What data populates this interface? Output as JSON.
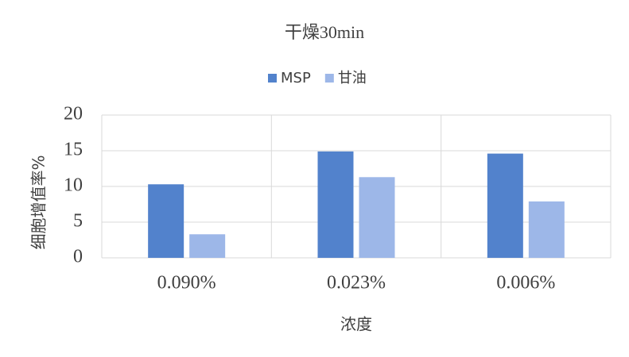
{
  "chart_data": {
    "type": "bar",
    "title": "干燥30min",
    "x_label": "浓度",
    "y_label": "细胞增值率%",
    "categories": [
      "0.090%",
      "0.023%",
      "0.006%"
    ],
    "series": [
      {
        "name": "MSP",
        "color": "#5282cc",
        "values": [
          10.3,
          14.9,
          14.6
        ]
      },
      {
        "name": "甘油",
        "color": "#9db7e8",
        "values": [
          3.3,
          11.3,
          7.9
        ]
      }
    ],
    "ylim": [
      0,
      20
    ],
    "yticks": [
      0,
      5,
      10,
      15,
      20
    ],
    "grid": true
  }
}
